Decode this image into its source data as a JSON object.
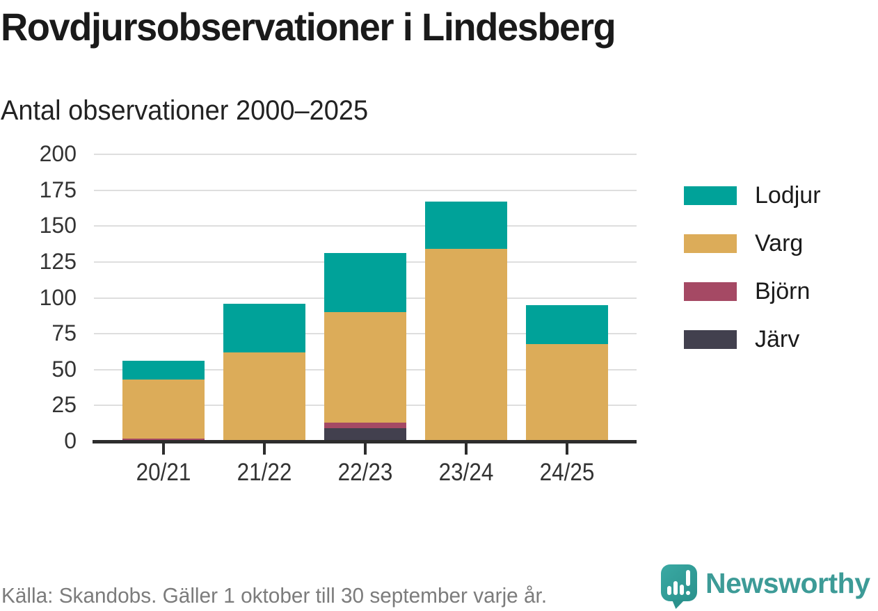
{
  "header": {
    "title": "Rovdjursobservationer i Lindesberg",
    "subtitle": "Antal observationer 2000–2025"
  },
  "chart_data": {
    "type": "bar",
    "stacked": true,
    "title": "Rovdjursobservationer i Lindesberg",
    "subtitle": "Antal observationer 2000–2025",
    "categories": [
      "20/21",
      "21/22",
      "22/23",
      "23/24",
      "24/25"
    ],
    "series": [
      {
        "key": "lodjur",
        "name": "Lodjur",
        "color": "#00a299",
        "values": [
          13,
          34,
          41,
          33,
          27
        ]
      },
      {
        "key": "varg",
        "name": "Varg",
        "color": "#dcac59",
        "values": [
          41,
          62,
          77,
          133,
          68
        ]
      },
      {
        "key": "bjorn",
        "name": "Björn",
        "color": "#a54964",
        "values": [
          2,
          0,
          4,
          1,
          0
        ]
      },
      {
        "key": "jarv",
        "name": "Järv",
        "color": "#42404e",
        "values": [
          0,
          0,
          9,
          0,
          0
        ]
      }
    ],
    "stack_order_bottom_to_top": [
      "jarv",
      "bjorn",
      "varg",
      "lodjur"
    ],
    "totals": [
      56,
      96,
      131,
      167,
      95
    ],
    "ylim": [
      0,
      200
    ],
    "yticks": [
      0,
      25,
      50,
      75,
      100,
      125,
      150,
      175,
      200
    ],
    "xlabel": "",
    "ylabel": "",
    "grid": "horizontal",
    "legend_position": "right"
  },
  "footer": {
    "source": "Källa: Skandobs. Gäller 1 oktober till 30 september varje år.",
    "brand": "Newsworthy"
  },
  "colors": {
    "grid": "#dedede",
    "axis": "#2d2d2d",
    "title_text": "#1a1a1a",
    "axis_text": "#333333",
    "footer_text": "#7c7c7c",
    "brand_teal": "#3d9b97"
  }
}
